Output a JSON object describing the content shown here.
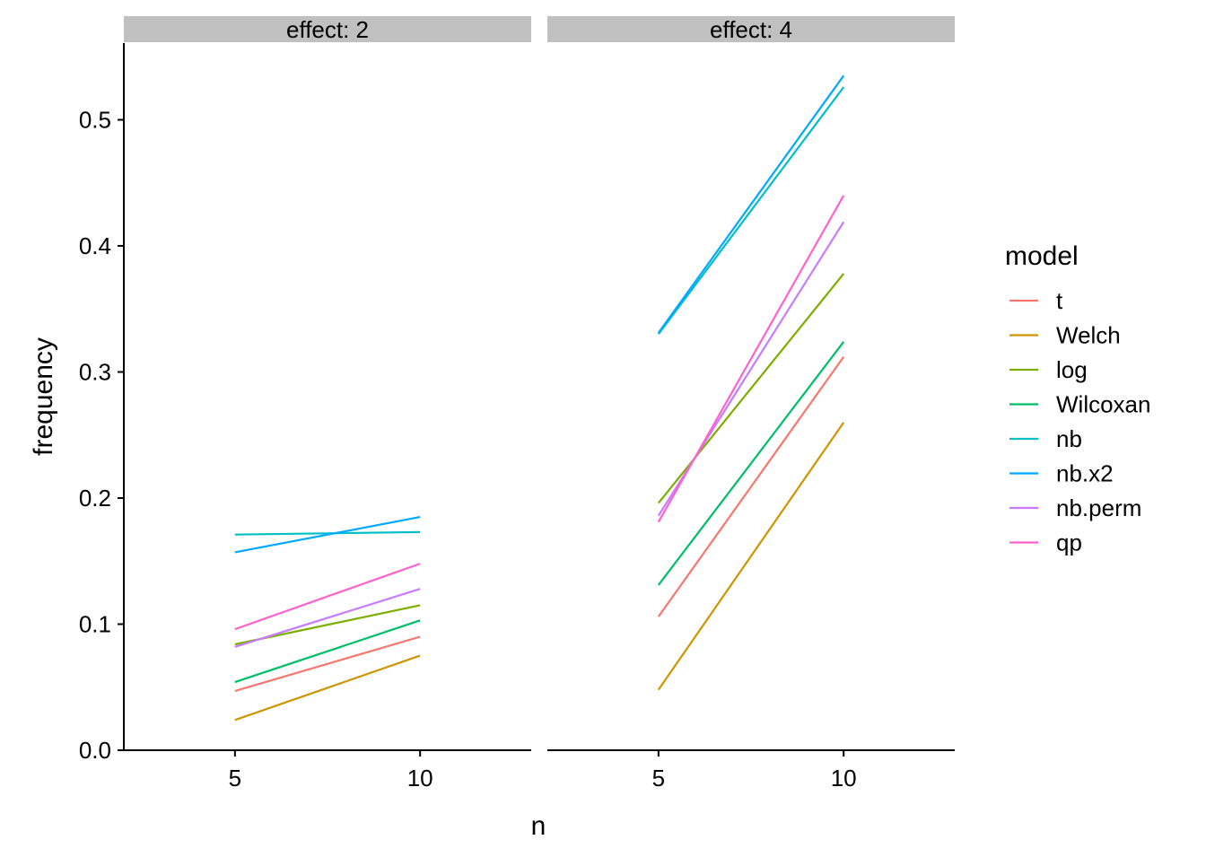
{
  "chart_data": {
    "type": "line",
    "xlabel": "n",
    "ylabel": "frequency",
    "x": [
      5,
      10
    ],
    "x_ticks": [
      "5",
      "10"
    ],
    "xlim": [
      2,
      13
    ],
    "ylim": [
      0,
      0.56
    ],
    "y_ticks": [
      "0.0",
      "0.1",
      "0.2",
      "0.3",
      "0.4",
      "0.5"
    ],
    "grid": false,
    "legend": {
      "title": "model",
      "position": "right"
    },
    "panels": [
      {
        "label": "effect: 2",
        "series": [
          {
            "name": "t",
            "color": "#F8766D",
            "values": [
              0.047,
              0.09
            ]
          },
          {
            "name": "Welch",
            "color": "#CD9600",
            "values": [
              0.024,
              0.075
            ]
          },
          {
            "name": "log",
            "color": "#7CAE00",
            "values": [
              0.084,
              0.115
            ]
          },
          {
            "name": "Wilcoxan",
            "color": "#00BE67",
            "values": [
              0.054,
              0.103
            ]
          },
          {
            "name": "nb",
            "color": "#00BFC4",
            "values": [
              0.171,
              0.173
            ]
          },
          {
            "name": "nb.x2",
            "color": "#00A9FF",
            "values": [
              0.157,
              0.185
            ]
          },
          {
            "name": "nb.perm",
            "color": "#C77CFF",
            "values": [
              0.082,
              0.128
            ]
          },
          {
            "name": "qp",
            "color": "#FF61CC",
            "values": [
              0.096,
              0.148
            ]
          }
        ]
      },
      {
        "label": "effect: 4",
        "series": [
          {
            "name": "t",
            "color": "#F8766D",
            "values": [
              0.106,
              0.312
            ]
          },
          {
            "name": "Welch",
            "color": "#CD9600",
            "values": [
              0.048,
              0.26
            ]
          },
          {
            "name": "log",
            "color": "#7CAE00",
            "values": [
              0.196,
              0.378
            ]
          },
          {
            "name": "Wilcoxan",
            "color": "#00BE67",
            "values": [
              0.131,
              0.324
            ]
          },
          {
            "name": "nb",
            "color": "#00BFC4",
            "values": [
              0.33,
              0.526
            ]
          },
          {
            "name": "nb.x2",
            "color": "#00A9FF",
            "values": [
              0.331,
              0.535
            ]
          },
          {
            "name": "nb.perm",
            "color": "#C77CFF",
            "values": [
              0.186,
              0.419
            ]
          },
          {
            "name": "qp",
            "color": "#FF61CC",
            "values": [
              0.181,
              0.44
            ]
          }
        ]
      }
    ]
  }
}
